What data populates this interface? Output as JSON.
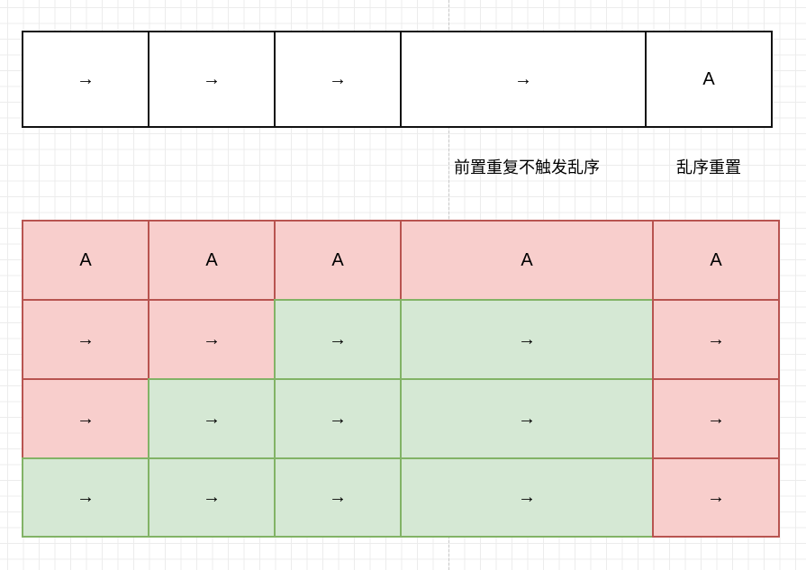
{
  "colors": {
    "red_fill": "#f8cecc",
    "red_stroke": "#b85450",
    "green_fill": "#d5e8d4",
    "green_stroke": "#82b366",
    "plain_stroke": "#111111"
  },
  "top_row": [
    "→",
    "→",
    "→",
    "→",
    "A"
  ],
  "labels": {
    "left": "前置重复不触发乱序",
    "right": "乱序重置"
  },
  "grid": [
    [
      {
        "t": "A",
        "s": "red"
      },
      {
        "t": "A",
        "s": "red"
      },
      {
        "t": "A",
        "s": "red"
      },
      {
        "t": "A",
        "s": "red"
      },
      {
        "t": "A",
        "s": "red"
      }
    ],
    [
      {
        "t": "→",
        "s": "red"
      },
      {
        "t": "→",
        "s": "red"
      },
      {
        "t": "→",
        "s": "green"
      },
      {
        "t": "→",
        "s": "green"
      },
      {
        "t": "→",
        "s": "red"
      }
    ],
    [
      {
        "t": "→",
        "s": "red"
      },
      {
        "t": "→",
        "s": "green"
      },
      {
        "t": "→",
        "s": "green"
      },
      {
        "t": "→",
        "s": "green"
      },
      {
        "t": "→",
        "s": "red"
      }
    ],
    [
      {
        "t": "→",
        "s": "green"
      },
      {
        "t": "→",
        "s": "green"
      },
      {
        "t": "→",
        "s": "green"
      },
      {
        "t": "→",
        "s": "green"
      },
      {
        "t": "→",
        "s": "red"
      }
    ]
  ]
}
